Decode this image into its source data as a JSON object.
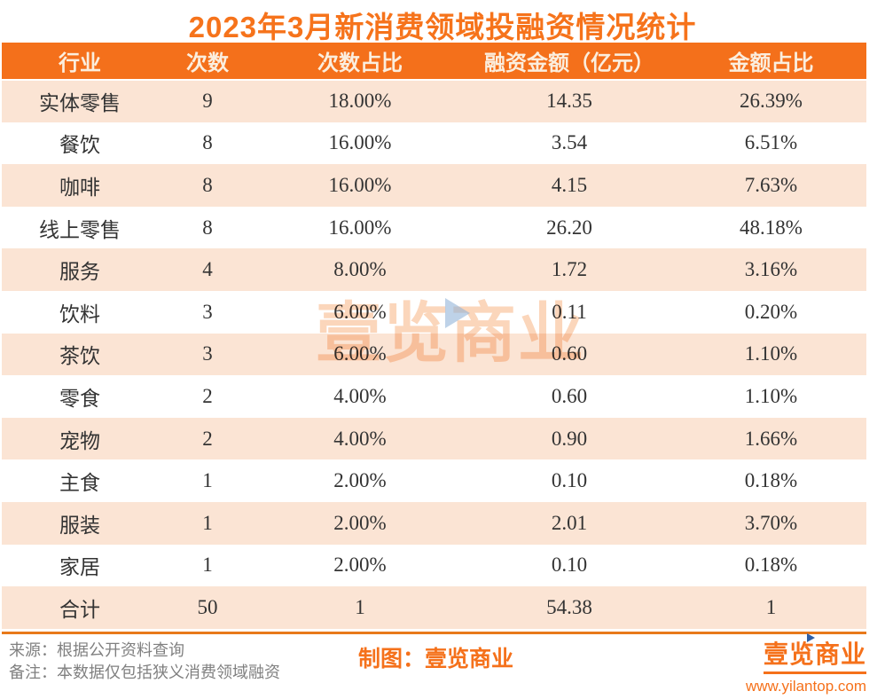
{
  "title": "2023年3月新消费领域投融资情况统计",
  "colors": {
    "primary_orange": "#F5711B",
    "header_bg": "#F4701B",
    "header_text": "#FBEEDE",
    "row_peach": "#FBE4D4",
    "body_text": "#333333",
    "divider_orange": "#E8791A",
    "footer_gray": "#808080",
    "watermark_orange": "#F59955",
    "watermark_triangle_blue": "#93B4D8",
    "logo_triangle_blue": "#2F5FA5"
  },
  "table": {
    "headers": [
      "行业",
      "次数",
      "次数占比",
      "融资金额（亿元）",
      "金额占比"
    ],
    "rows": [
      {
        "industry": "实体零售",
        "count": "9",
        "count_pct": "18.00%",
        "amount": "14.35",
        "amount_pct": "26.39%"
      },
      {
        "industry": "餐饮",
        "count": "8",
        "count_pct": "16.00%",
        "amount": "3.54",
        "amount_pct": "6.51%"
      },
      {
        "industry": "咖啡",
        "count": "8",
        "count_pct": "16.00%",
        "amount": "4.15",
        "amount_pct": "7.63%"
      },
      {
        "industry": "线上零售",
        "count": "8",
        "count_pct": "16.00%",
        "amount": "26.20",
        "amount_pct": "48.18%"
      },
      {
        "industry": "服务",
        "count": "4",
        "count_pct": "8.00%",
        "amount": "1.72",
        "amount_pct": "3.16%"
      },
      {
        "industry": "饮料",
        "count": "3",
        "count_pct": "6.00%",
        "amount": "0.11",
        "amount_pct": "0.20%"
      },
      {
        "industry": "茶饮",
        "count": "3",
        "count_pct": "6.00%",
        "amount": "0.60",
        "amount_pct": "1.10%"
      },
      {
        "industry": "零食",
        "count": "2",
        "count_pct": "4.00%",
        "amount": "0.60",
        "amount_pct": "1.10%"
      },
      {
        "industry": "宠物",
        "count": "2",
        "count_pct": "4.00%",
        "amount": "0.90",
        "amount_pct": "1.66%"
      },
      {
        "industry": "主食",
        "count": "1",
        "count_pct": "2.00%",
        "amount": "0.10",
        "amount_pct": "0.18%"
      },
      {
        "industry": "服装",
        "count": "1",
        "count_pct": "2.00%",
        "amount": "2.01",
        "amount_pct": "3.70%"
      },
      {
        "industry": "家居",
        "count": "1",
        "count_pct": "2.00%",
        "amount": "0.10",
        "amount_pct": "0.18%"
      },
      {
        "industry": "合计",
        "count": "50",
        "count_pct": "1",
        "amount": "54.38",
        "amount_pct": "1"
      }
    ]
  },
  "watermark": {
    "text": "壹览商业"
  },
  "footer": {
    "source": "来源：根据公开资料查询",
    "note": "备注：本数据仅包括狭义消费领域融资",
    "credit": "制图：壹览商业",
    "logo_text": "壹览商业",
    "website": "www.yilantop.com"
  },
  "chart_data": {
    "type": "table",
    "title": "2023年3月新消费领域投融资情况统计",
    "columns": [
      "行业",
      "次数",
      "次数占比",
      "融资金额（亿元）",
      "金额占比"
    ],
    "rows": [
      [
        "实体零售",
        9,
        "18.00%",
        14.35,
        "26.39%"
      ],
      [
        "餐饮",
        8,
        "16.00%",
        3.54,
        "6.51%"
      ],
      [
        "咖啡",
        8,
        "16.00%",
        4.15,
        "7.63%"
      ],
      [
        "线上零售",
        8,
        "16.00%",
        26.2,
        "48.18%"
      ],
      [
        "服务",
        4,
        "8.00%",
        1.72,
        "3.16%"
      ],
      [
        "饮料",
        3,
        "6.00%",
        0.11,
        "0.20%"
      ],
      [
        "茶饮",
        3,
        "6.00%",
        0.6,
        "1.10%"
      ],
      [
        "零食",
        2,
        "4.00%",
        0.6,
        "1.10%"
      ],
      [
        "宠物",
        2,
        "4.00%",
        0.9,
        "1.66%"
      ],
      [
        "主食",
        1,
        "2.00%",
        0.1,
        "0.18%"
      ],
      [
        "服装",
        1,
        "2.00%",
        2.01,
        "3.70%"
      ],
      [
        "家居",
        1,
        "2.00%",
        0.1,
        "0.18%"
      ],
      [
        "合计",
        50,
        "1",
        54.38,
        "1"
      ]
    ],
    "totals_row_label": "合计",
    "legend_position": "none",
    "grid": false
  }
}
